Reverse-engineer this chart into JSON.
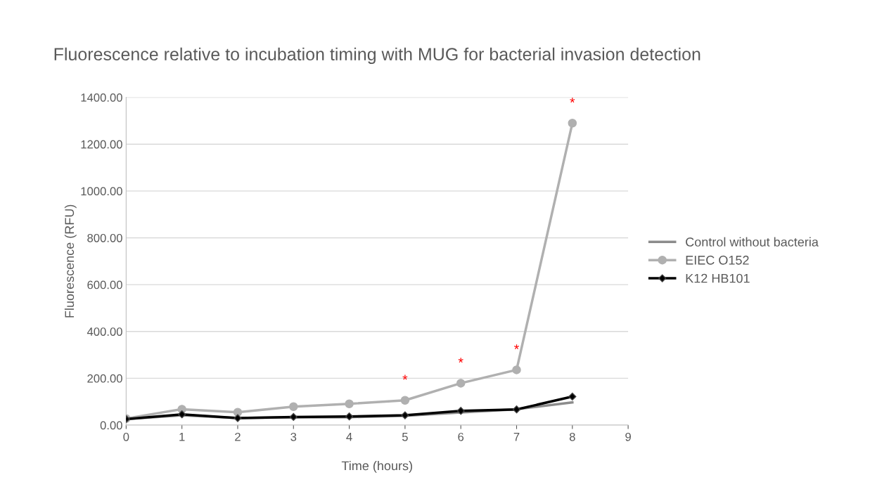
{
  "chart_data": {
    "type": "line",
    "title": "Fluorescence relative to incubation timing with MUG for bacterial invasion detection",
    "xlabel": "Time (hours)",
    "ylabel": "Fluorescence (RFU)",
    "x": [
      0,
      1,
      2,
      3,
      4,
      5,
      6,
      7,
      8
    ],
    "series": [
      {
        "name": "Control without bacteria",
        "color": "#8c8c8c",
        "marker": "none",
        "values": [
          26,
          42,
          30,
          33,
          34,
          40,
          54,
          68,
          97
        ]
      },
      {
        "name": "EIEC O152",
        "color": "#b0b0b0",
        "marker": "circle",
        "values": [
          28,
          68,
          55,
          79,
          91,
          106,
          179,
          236,
          1290
        ]
      },
      {
        "name": "K12 HB101",
        "color": "#000000",
        "marker": "diamond",
        "values": [
          26,
          46,
          30,
          35,
          37,
          42,
          61,
          67,
          122
        ]
      }
    ],
    "xlim": [
      0,
      9
    ],
    "xticks": [
      0,
      1,
      2,
      3,
      4,
      5,
      6,
      7,
      8,
      9
    ],
    "ylim": [
      0,
      1400
    ],
    "yticks": [
      {
        "value": 0,
        "label": "0.00"
      },
      {
        "value": 200,
        "label": "200.00"
      },
      {
        "value": 400,
        "label": "400.00"
      },
      {
        "value": 600,
        "label": "600.00"
      },
      {
        "value": 800,
        "label": "800.00"
      },
      {
        "value": 1000,
        "label": "1000.00"
      },
      {
        "value": 1200,
        "label": "1200.00"
      },
      {
        "value": 1400,
        "label": "1400.00"
      }
    ],
    "annotations": [
      {
        "text": "*",
        "x": 5,
        "y": 106
      },
      {
        "text": "*",
        "x": 6,
        "y": 179
      },
      {
        "text": "*",
        "x": 7,
        "y": 236
      },
      {
        "text": "*",
        "x": 8,
        "y": 1290
      }
    ],
    "grid": "y",
    "legend": "right",
    "line_style": "solid"
  }
}
